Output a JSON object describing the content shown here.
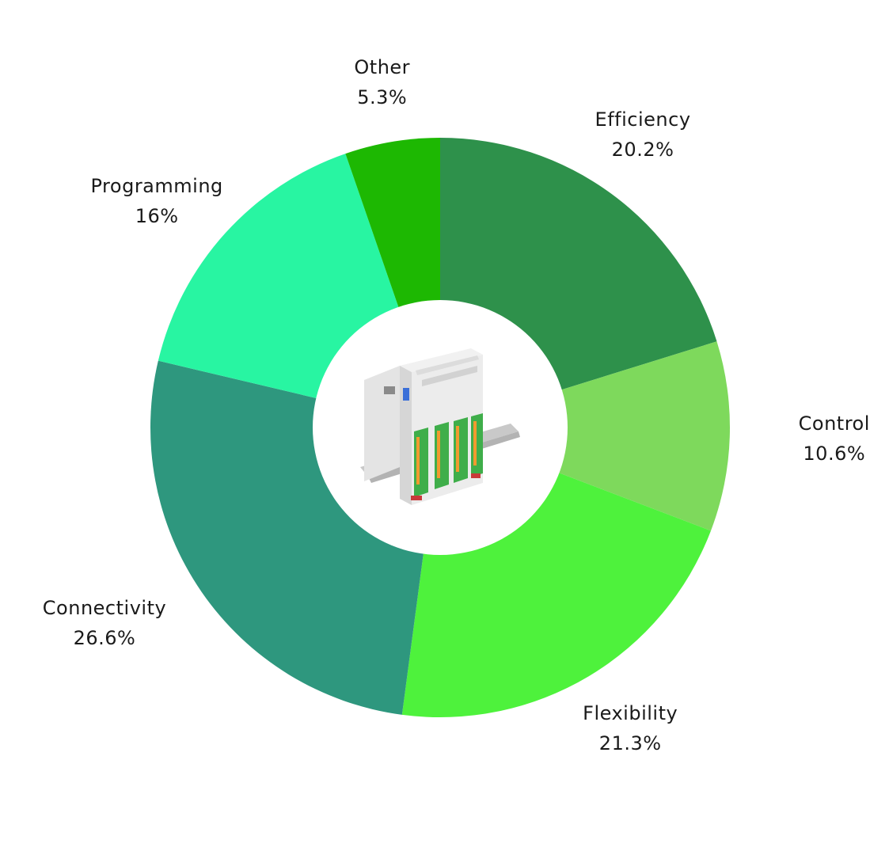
{
  "chart_data": {
    "type": "pie",
    "donut": true,
    "title": "",
    "slices": [
      {
        "label": "Efficiency",
        "percent_text": "20.2%",
        "value": 20.2,
        "color": "#2e914b"
      },
      {
        "label": "Control",
        "percent_text": "10.6%",
        "value": 10.6,
        "color": "#7ed95c"
      },
      {
        "label": "Flexibility",
        "percent_text": "21.3%",
        "value": 21.3,
        "color": "#4ef23c"
      },
      {
        "label": "Connectivity",
        "percent_text": "26.6%",
        "value": 26.6,
        "color": "#2e977e"
      },
      {
        "label": "Programming",
        "percent_text": "16%",
        "value": 16.0,
        "color": "#28f5a2"
      },
      {
        "label": "Other",
        "percent_text": "5.3%",
        "value": 5.3,
        "color": "#1db802"
      }
    ],
    "start": "top",
    "direction": "clockwise",
    "center_image": "plc-controller-device"
  }
}
